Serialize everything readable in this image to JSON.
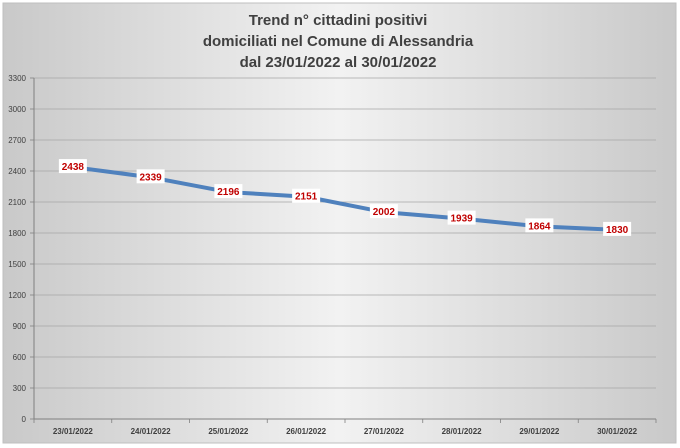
{
  "chart_data": {
    "type": "line",
    "title_lines": [
      "Trend n° cittadini positivi",
      "domiciliati nel Comune di Alessandria",
      "dal 23/01/2022 al 30/01/2022"
    ],
    "categories": [
      "23/01/2022",
      "24/01/2022",
      "25/01/2022",
      "26/01/2022",
      "27/01/2022",
      "28/01/2022",
      "29/01/2022",
      "30/01/2022"
    ],
    "values": [
      2438,
      2339,
      2196,
      2151,
      2002,
      1939,
      1864,
      1830
    ],
    "ylim": [
      0,
      3300
    ],
    "yticks": [
      0,
      300,
      600,
      900,
      1200,
      1500,
      1800,
      2100,
      2400,
      2700,
      3000,
      3300
    ],
    "grid": true,
    "legend": "none",
    "colors": {
      "line": "#4f81bd",
      "label": "#c00000"
    }
  }
}
